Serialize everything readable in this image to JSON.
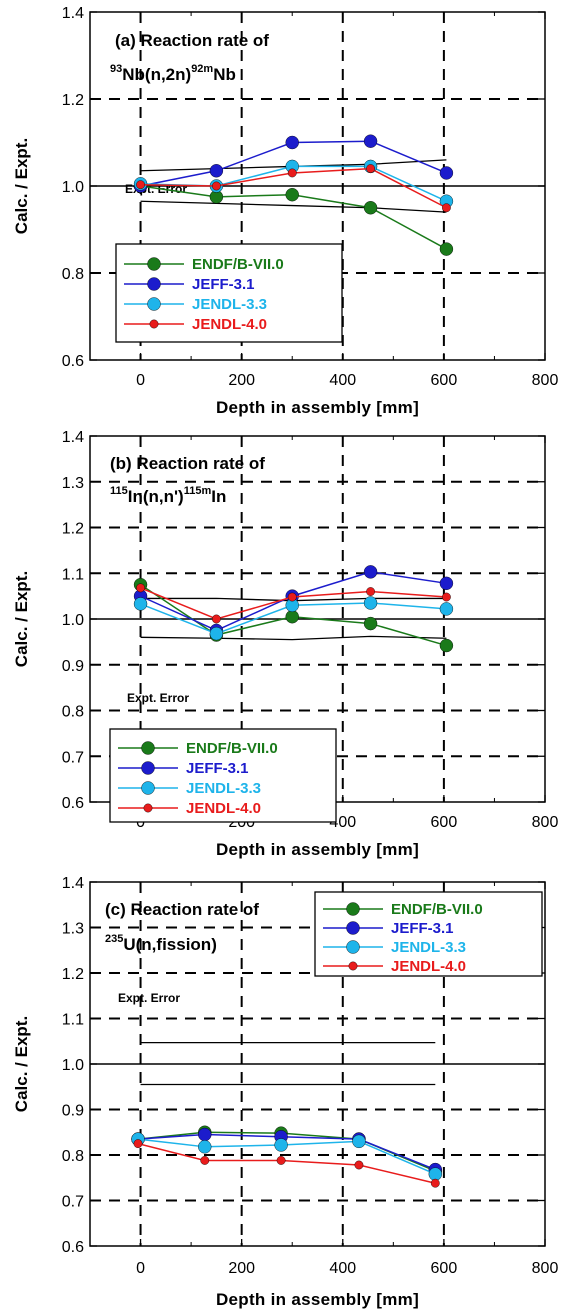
{
  "chart_data": [
    {
      "type": "line",
      "panel_id": "a",
      "title_line1": "(a) Reaction rate of",
      "reaction": {
        "sup1": "93",
        "base1": "Nb(n,2n)",
        "sup2": "92m",
        "base2": "Nb"
      },
      "xlabel": "Depth in assembly [mm]",
      "ylabel": "Calc. / Expt.",
      "xlim": [
        -100,
        800
      ],
      "ylim": [
        0.6,
        1.4
      ],
      "xticks": [
        "0",
        "200",
        "400",
        "600",
        "800"
      ],
      "yticks": [
        "0.6",
        "0.8",
        "1.0",
        "1.2",
        "1.4"
      ],
      "grid": "dashed",
      "legend_position": "bottom-left",
      "expt_error_label": "Expt. Error",
      "expt_error": {
        "x": [
          0,
          150,
          300,
          455,
          605
        ],
        "upper": [
          1.035,
          1.04,
          1.045,
          1.05,
          1.06
        ],
        "lower": [
          0.965,
          0.96,
          0.955,
          0.95,
          0.94
        ]
      },
      "series": [
        {
          "name": "ENDF/B-VII.0",
          "color": "#1a7a1a",
          "marker": "large",
          "x": [
            0,
            150,
            300,
            455,
            605
          ],
          "y": [
            1.0,
            0.975,
            0.98,
            0.95,
            0.855
          ]
        },
        {
          "name": "JEFF-3.1",
          "color": "#1c1ccc",
          "marker": "large",
          "x": [
            0,
            150,
            300,
            455,
            605
          ],
          "y": [
            1.0,
            1.035,
            1.1,
            1.103,
            1.03
          ]
        },
        {
          "name": "JENDL-3.3",
          "color": "#1eb4ea",
          "marker": "large",
          "x": [
            0,
            150,
            300,
            455,
            605
          ],
          "y": [
            1.005,
            1.0,
            1.045,
            1.045,
            0.965
          ]
        },
        {
          "name": "JENDL-4.0",
          "color": "#e81c1c",
          "marker": "small",
          "x": [
            0,
            150,
            300,
            455,
            605
          ],
          "y": [
            1.003,
            1.0,
            1.03,
            1.04,
            0.95
          ]
        }
      ]
    },
    {
      "type": "line",
      "panel_id": "b",
      "title_line1": "(b) Reaction rate of",
      "reaction": {
        "sup1": "115",
        "base1": "In(n,n')",
        "sup2": "115m",
        "base2": "In"
      },
      "xlabel": "Depth in assembly [mm]",
      "ylabel": "Calc. / Expt.",
      "xlim": [
        -100,
        800
      ],
      "ylim": [
        0.6,
        1.4
      ],
      "xticks": [
        "0",
        "200",
        "400",
        "600",
        "800"
      ],
      "yticks": [
        "0.6",
        "0.7",
        "0.8",
        "0.9",
        "1.0",
        "1.1",
        "1.2",
        "1.3",
        "1.4"
      ],
      "grid": "dashed",
      "legend_position": "bottom-left",
      "expt_error_label": "Expt. Error",
      "expt_error": {
        "x": [
          0,
          150,
          300,
          455,
          605
        ],
        "upper": [
          1.045,
          1.045,
          1.04,
          1.045,
          1.045
        ],
        "lower": [
          0.96,
          0.958,
          0.955,
          0.962,
          0.958
        ]
      },
      "series": [
        {
          "name": "ENDF/B-VII.0",
          "color": "#1a7a1a",
          "marker": "large",
          "x": [
            0,
            150,
            300,
            455,
            605
          ],
          "y": [
            1.075,
            0.965,
            1.005,
            0.99,
            0.942
          ]
        },
        {
          "name": "JEFF-3.1",
          "color": "#1c1ccc",
          "marker": "large",
          "x": [
            0,
            150,
            300,
            455,
            605
          ],
          "y": [
            1.05,
            0.975,
            1.05,
            1.103,
            1.078
          ]
        },
        {
          "name": "JENDL-3.3",
          "color": "#1eb4ea",
          "marker": "large",
          "x": [
            0,
            150,
            300,
            455,
            605
          ],
          "y": [
            1.033,
            0.968,
            1.03,
            1.035,
            1.022
          ]
        },
        {
          "name": "JENDL-4.0",
          "color": "#e81c1c",
          "marker": "small",
          "x": [
            0,
            150,
            300,
            455,
            605
          ],
          "y": [
            1.068,
            1.0,
            1.048,
            1.06,
            1.048
          ]
        }
      ]
    },
    {
      "type": "line",
      "panel_id": "c",
      "title_line1": "(c) Reaction rate of",
      "reaction": {
        "sup1": "235",
        "base1": "U(n,fission)",
        "sup2": "",
        "base2": ""
      },
      "xlabel": "Depth in assembly [mm]",
      "ylabel": "Calc. / Expt.",
      "xlim": [
        -100,
        800
      ],
      "ylim": [
        0.6,
        1.4
      ],
      "xticks": [
        "0",
        "200",
        "400",
        "600",
        "800"
      ],
      "yticks": [
        "0.6",
        "0.7",
        "0.8",
        "0.9",
        "1.0",
        "1.1",
        "1.2",
        "1.3",
        "1.4"
      ],
      "grid": "dashed",
      "legend_position": "top-right",
      "expt_error_label": "Expt. Error",
      "expt_error": {
        "x": [
          0,
          583
        ],
        "upper": [
          1.047,
          1.047
        ],
        "lower": [
          0.955,
          0.955
        ]
      },
      "series": [
        {
          "name": "ENDF/B-VII.0",
          "color": "#1a7a1a",
          "marker": "large",
          "x": [
            -5,
            127,
            278,
            432,
            583
          ],
          "y": [
            0.835,
            0.85,
            0.848,
            0.835,
            0.765
          ]
        },
        {
          "name": "JEFF-3.1",
          "color": "#1c1ccc",
          "marker": "large",
          "x": [
            -5,
            127,
            278,
            432,
            583
          ],
          "y": [
            0.835,
            0.845,
            0.84,
            0.835,
            0.768
          ]
        },
        {
          "name": "JENDL-3.3",
          "color": "#1eb4ea",
          "marker": "large",
          "x": [
            -5,
            127,
            278,
            432,
            583
          ],
          "y": [
            0.835,
            0.818,
            0.822,
            0.83,
            0.758
          ]
        },
        {
          "name": "JENDL-4.0",
          "color": "#e81c1c",
          "marker": "small",
          "x": [
            -5,
            127,
            278,
            432,
            583
          ],
          "y": [
            0.825,
            0.788,
            0.788,
            0.778,
            0.738
          ]
        }
      ]
    }
  ]
}
